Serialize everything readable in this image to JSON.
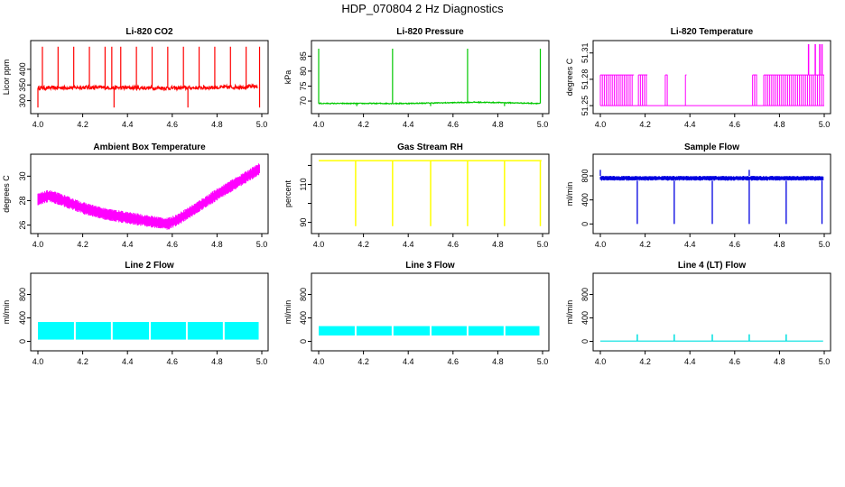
{
  "figure": {
    "title": "HDP_070804  2 Hz Diagnostics"
  },
  "chart_data": [
    {
      "type": "line",
      "id": "co2",
      "title": "Li-820 CO2",
      "xlabel": "",
      "ylabel": "Licor ppm",
      "color": "#ff0000",
      "xlim": [
        4.0,
        5.0
      ],
      "ylim": [
        270,
        480
      ],
      "x_ticks": [
        "4.0",
        "4.2",
        "4.4",
        "4.6",
        "4.8",
        "5.0"
      ],
      "y_ticks": [
        300,
        350,
        400
      ],
      "baseline": {
        "x": [
          4.0,
          4.2,
          4.4,
          4.6,
          4.8,
          4.98
        ],
        "y": [
          340,
          342,
          341,
          340,
          342,
          345
        ],
        "noise": 6
      },
      "spikes_up": {
        "x": [
          4.02,
          4.09,
          4.16,
          4.23,
          4.3,
          4.33,
          4.37,
          4.44,
          4.51,
          4.58,
          4.65,
          4.72,
          4.79,
          4.86,
          4.93,
          4.99
        ],
        "y": 472
      },
      "spikes_down": {
        "x": [
          4.0,
          4.34,
          4.67,
          4.99
        ],
        "y": 278
      }
    },
    {
      "type": "line",
      "id": "pressure",
      "title": "Li-820 Pressure",
      "xlabel": "",
      "ylabel": "kPa",
      "color": "#00c800",
      "xlim": [
        4.0,
        5.0
      ],
      "ylim": [
        67,
        89
      ],
      "x_ticks": [
        "4.0",
        "4.2",
        "4.4",
        "4.6",
        "4.8",
        "5.0"
      ],
      "y_ticks": [
        70,
        75,
        80,
        85
      ],
      "baseline": {
        "x": [
          4.0,
          4.4,
          4.7,
          4.8,
          4.99
        ],
        "y": [
          69.2,
          69.2,
          69.6,
          69.5,
          69.2
        ],
        "noise": 0.15
      },
      "spikes_up": {
        "x": [
          4.0,
          4.33,
          4.665,
          4.99
        ],
        "y": 87.5
      },
      "spikes_down": {
        "x": [
          4.17,
          4.5,
          4.83
        ],
        "y": 68.3
      }
    },
    {
      "type": "line",
      "id": "temperature",
      "title": "Li-820 Temperature",
      "xlabel": "",
      "ylabel": "degrees C",
      "color": "#ff00ff",
      "xlim": [
        4.0,
        5.0
      ],
      "ylim": [
        51.245,
        51.32
      ],
      "x_ticks": [
        "4.0",
        "4.2",
        "4.4",
        "4.6",
        "4.8",
        "5.0"
      ],
      "y_ticks": [
        51.25,
        51.28,
        51.31
      ],
      "y_tick_labels": [
        "51.25",
        "51.28",
        "51.31"
      ],
      "low_value": 51.25,
      "high_value": 51.285,
      "top_value": 51.32,
      "high_bands": [
        [
          4.0,
          4.15
        ],
        [
          4.17,
          4.21
        ],
        [
          4.29,
          4.3
        ],
        [
          4.38,
          4.385
        ],
        [
          4.68,
          4.7
        ],
        [
          4.73,
          5.0
        ]
      ],
      "top_spikes": [
        4.93,
        4.96,
        4.98,
        4.99
      ]
    },
    {
      "type": "line",
      "id": "box_temp",
      "title": "Ambient Box Temperature",
      "xlabel": "",
      "ylabel": "degrees C",
      "color": "#ff00ff",
      "xlim": [
        4.0,
        5.0
      ],
      "ylim": [
        25.6,
        31.5
      ],
      "x_ticks": [
        "4.0",
        "4.2",
        "4.4",
        "4.6",
        "4.8",
        "5.0"
      ],
      "y_ticks": [
        26,
        28,
        30
      ],
      "y_tick_labels": [
        "26",
        "28",
        "30"
      ],
      "baseline": {
        "x": [
          4.0,
          4.05,
          4.1,
          4.2,
          4.3,
          4.4,
          4.5,
          4.58,
          4.62,
          4.7,
          4.8,
          4.9,
          4.99
        ],
        "y": [
          28.1,
          28.4,
          28.1,
          27.4,
          26.9,
          26.6,
          26.3,
          26.1,
          26.4,
          27.3,
          28.5,
          29.6,
          30.6
        ]
      },
      "band_half_width": 0.45
    },
    {
      "type": "line",
      "id": "rh",
      "title": "Gas Stream RH",
      "xlabel": "",
      "ylabel": "percent",
      "color": "#ffff00",
      "xlim": [
        4.0,
        5.0
      ],
      "ylim": [
        86,
        124
      ],
      "x_ticks": [
        "4.0",
        "4.2",
        "4.4",
        "4.6",
        "4.8",
        "5.0"
      ],
      "y_ticks": [
        90,
        100,
        110,
        120
      ],
      "y_tick_labels": [
        "90",
        "",
        "110",
        ""
      ],
      "baseline_y": 122.5,
      "dips": {
        "x": [
          4.165,
          4.33,
          4.5,
          4.665,
          4.83,
          4.99
        ],
        "y": 88
      }
    },
    {
      "type": "line",
      "id": "sample_flow",
      "title": "Sample Flow",
      "xlabel": "",
      "ylabel": "ml/min",
      "color": "#0000e0",
      "xlim": [
        4.0,
        5.0
      ],
      "ylim": [
        -100,
        1100
      ],
      "x_ticks": [
        "4.0",
        "4.2",
        "4.4",
        "4.6",
        "4.8",
        "5.0"
      ],
      "y_ticks": [
        0,
        400,
        800
      ],
      "band": [
        720,
        800
      ],
      "dips": {
        "x": [
          4.165,
          4.33,
          4.5,
          4.665,
          4.83,
          4.99
        ],
        "y": 0
      },
      "spikes_up": {
        "x": [
          4.0,
          4.665
        ],
        "y": 900
      }
    },
    {
      "type": "line",
      "id": "line2",
      "title": "Line 2 Flow",
      "xlabel": "",
      "ylabel": "ml/min",
      "color": "#00ffff",
      "xlim": [
        4.0,
        5.0
      ],
      "ylim": [
        -100,
        1100
      ],
      "x_ticks": [
        "4.0",
        "4.2",
        "4.4",
        "4.6",
        "4.8",
        "5.0"
      ],
      "y_ticks": [
        0,
        400,
        800
      ],
      "band": [
        30,
        330
      ],
      "gaps": [
        4.165,
        4.33,
        4.5,
        4.665,
        4.83,
        4.99
      ]
    },
    {
      "type": "line",
      "id": "line3",
      "title": "Line 3 Flow",
      "xlabel": "",
      "ylabel": "ml/min",
      "color": "#00ffff",
      "xlim": [
        4.0,
        5.0
      ],
      "ylim": [
        -100,
        1100
      ],
      "x_ticks": [
        "4.0",
        "4.2",
        "4.4",
        "4.6",
        "4.8",
        "5.0"
      ],
      "y_ticks": [
        0,
        400,
        800
      ],
      "band": [
        100,
        260
      ],
      "gaps": [
        4.165,
        4.33,
        4.5,
        4.665,
        4.83,
        4.99
      ]
    },
    {
      "type": "line",
      "id": "line4",
      "title": "Line 4 (LT) Flow",
      "xlabel": "",
      "ylabel": "ml/min",
      "color": "#00e0e0",
      "xlim": [
        4.0,
        5.0
      ],
      "ylim": [
        -100,
        1100
      ],
      "x_ticks": [
        "4.0",
        "4.2",
        "4.4",
        "4.6",
        "4.8",
        "5.0"
      ],
      "y_ticks": [
        0,
        400,
        800
      ],
      "baseline_y": 5,
      "spikes_up": {
        "x": [
          4.165,
          4.33,
          4.5,
          4.665,
          4.83
        ],
        "y": 120
      }
    }
  ]
}
